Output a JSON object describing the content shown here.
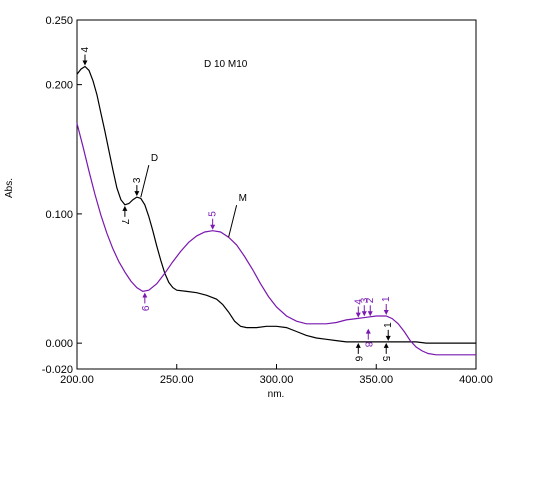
{
  "chart_data": {
    "type": "line",
    "annotation": "D 10 M10",
    "xlabel": "nm.",
    "ylabel": "Abs.",
    "xlim": [
      200,
      400
    ],
    "ylim": [
      -0.02,
      0.25
    ],
    "x_ticks": [
      "200.00",
      "250.00",
      "300.00",
      "350.00",
      "400.00"
    ],
    "y_ticks": [
      "0.250",
      "0.200",
      "0.100",
      "0.000",
      "-0.020"
    ],
    "y_tick_values": [
      0.25,
      0.2,
      0.1,
      0.0,
      -0.02
    ],
    "grid": false,
    "series": [
      {
        "name": "D",
        "color": "#000000",
        "points": [
          [
            200,
            0.208
          ],
          [
            202,
            0.212
          ],
          [
            204,
            0.214
          ],
          [
            206,
            0.211
          ],
          [
            208,
            0.203
          ],
          [
            210,
            0.192
          ],
          [
            212,
            0.178
          ],
          [
            214,
            0.164
          ],
          [
            216,
            0.149
          ],
          [
            218,
            0.134
          ],
          [
            220,
            0.12
          ],
          [
            222,
            0.111
          ],
          [
            224,
            0.107
          ],
          [
            226,
            0.108
          ],
          [
            228,
            0.111
          ],
          [
            230,
            0.113
          ],
          [
            232,
            0.112
          ],
          [
            234,
            0.107
          ],
          [
            236,
            0.098
          ],
          [
            238,
            0.087
          ],
          [
            240,
            0.075
          ],
          [
            242,
            0.064
          ],
          [
            244,
            0.054
          ],
          [
            246,
            0.047
          ],
          [
            248,
            0.043
          ],
          [
            250,
            0.041
          ],
          [
            255,
            0.04
          ],
          [
            260,
            0.039
          ],
          [
            265,
            0.037
          ],
          [
            270,
            0.034
          ],
          [
            273,
            0.03
          ],
          [
            276,
            0.024
          ],
          [
            279,
            0.017
          ],
          [
            282,
            0.013
          ],
          [
            285,
            0.012
          ],
          [
            290,
            0.012
          ],
          [
            295,
            0.013
          ],
          [
            300,
            0.013
          ],
          [
            305,
            0.012
          ],
          [
            310,
            0.009
          ],
          [
            315,
            0.006
          ],
          [
            320,
            0.004
          ],
          [
            325,
            0.003
          ],
          [
            330,
            0.002
          ],
          [
            335,
            0.001
          ],
          [
            340,
            0.001
          ],
          [
            345,
            0.001
          ],
          [
            350,
            0.001
          ],
          [
            355,
            0.001
          ],
          [
            360,
            0.001
          ],
          [
            365,
            0.001
          ],
          [
            370,
            0.001
          ],
          [
            375,
            0.0
          ],
          [
            380,
            0.0
          ],
          [
            385,
            0.0
          ],
          [
            390,
            0.0
          ],
          [
            395,
            0.0
          ],
          [
            400,
            0.0
          ]
        ]
      },
      {
        "name": "M",
        "color": "#7a18b0",
        "points": [
          [
            200,
            0.17
          ],
          [
            203,
            0.152
          ],
          [
            206,
            0.133
          ],
          [
            209,
            0.115
          ],
          [
            212,
            0.099
          ],
          [
            215,
            0.085
          ],
          [
            218,
            0.073
          ],
          [
            221,
            0.063
          ],
          [
            224,
            0.055
          ],
          [
            227,
            0.048
          ],
          [
            230,
            0.043
          ],
          [
            233,
            0.04
          ],
          [
            236,
            0.041
          ],
          [
            240,
            0.046
          ],
          [
            244,
            0.054
          ],
          [
            248,
            0.063
          ],
          [
            252,
            0.071
          ],
          [
            256,
            0.078
          ],
          [
            260,
            0.083
          ],
          [
            264,
            0.086
          ],
          [
            268,
            0.087
          ],
          [
            272,
            0.086
          ],
          [
            276,
            0.082
          ],
          [
            280,
            0.076
          ],
          [
            284,
            0.067
          ],
          [
            288,
            0.057
          ],
          [
            292,
            0.046
          ],
          [
            296,
            0.036
          ],
          [
            300,
            0.028
          ],
          [
            305,
            0.021
          ],
          [
            310,
            0.017
          ],
          [
            315,
            0.015
          ],
          [
            320,
            0.015
          ],
          [
            325,
            0.015
          ],
          [
            330,
            0.016
          ],
          [
            335,
            0.018
          ],
          [
            340,
            0.019
          ],
          [
            345,
            0.02
          ],
          [
            350,
            0.021
          ],
          [
            355,
            0.021
          ],
          [
            358,
            0.019
          ],
          [
            361,
            0.015
          ],
          [
            364,
            0.009
          ],
          [
            367,
            0.002
          ],
          [
            370,
            -0.003
          ],
          [
            373,
            -0.006
          ],
          [
            376,
            -0.008
          ],
          [
            380,
            -0.009
          ],
          [
            385,
            -0.009
          ],
          [
            390,
            -0.009
          ],
          [
            395,
            -0.009
          ],
          [
            400,
            -0.009
          ]
        ]
      }
    ],
    "curve_labels": [
      {
        "text": "D",
        "x": 232,
        "y": 0.113,
        "series": "D"
      },
      {
        "text": "M",
        "x": 276,
        "y": 0.082,
        "series": "M"
      }
    ],
    "peak_markers": [
      {
        "label": "4",
        "x": 204,
        "y": 0.214,
        "series": "D",
        "pos": "up"
      },
      {
        "label": "3",
        "x": 230,
        "y": 0.113,
        "series": "D",
        "pos": "up"
      },
      {
        "label": "7",
        "x": 224,
        "y": 0.107,
        "series": "D",
        "pos": "down"
      },
      {
        "label": "5",
        "x": 268,
        "y": 0.087,
        "series": "M",
        "pos": "up"
      },
      {
        "label": "9",
        "x": 234,
        "y": 0.04,
        "series": "M",
        "pos": "down"
      },
      {
        "label": "4",
        "x": 341,
        "y": 0.019,
        "series": "M",
        "pos": "up"
      },
      {
        "label": "3",
        "x": 344,
        "y": 0.02,
        "series": "M",
        "pos": "up"
      },
      {
        "label": "2",
        "x": 347,
        "y": 0.02,
        "series": "M",
        "pos": "up"
      },
      {
        "label": "1",
        "x": 355,
        "y": 0.021,
        "series": "M",
        "pos": "up"
      },
      {
        "label": "8",
        "x": 346,
        "y": 0.012,
        "series": "M",
        "pos": "down"
      },
      {
        "label": "6",
        "x": 341,
        "y": 0.001,
        "series": "D",
        "pos": "down"
      },
      {
        "label": "5",
        "x": 355,
        "y": 0.001,
        "series": "D",
        "pos": "down"
      },
      {
        "label": "1",
        "x": 356,
        "y": 0.001,
        "series": "D",
        "pos": "up"
      }
    ]
  }
}
